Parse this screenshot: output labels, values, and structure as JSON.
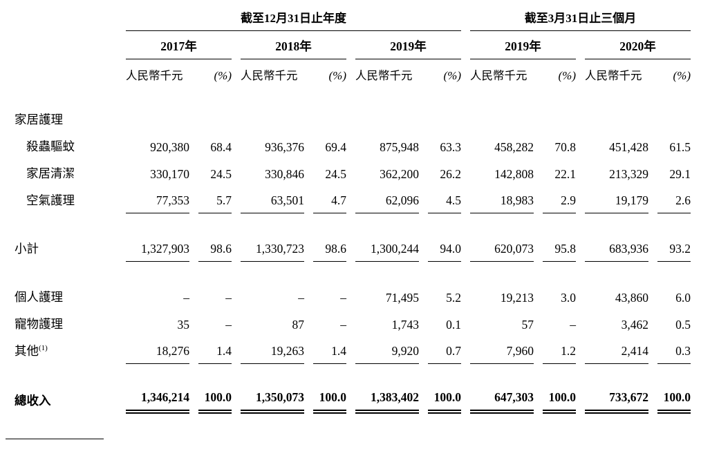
{
  "colors": {
    "text": "#000000",
    "background": "#ffffff",
    "rule": "#000000"
  },
  "table": {
    "col_groups": [
      {
        "title": "截至12月31日止年度",
        "years": [
          "2017年",
          "2018年",
          "2019年"
        ]
      },
      {
        "title": "截至3月31日止三個月",
        "years": [
          "2019年",
          "2020年"
        ]
      }
    ],
    "unit_label": "人民幣千元",
    "pct_label": "(%)",
    "rows": [
      {
        "label": "家居護理",
        "cells": []
      },
      {
        "label": "殺蟲驅蚊",
        "indent": true,
        "cells": [
          "920,380",
          "68.4",
          "936,376",
          "69.4",
          "875,948",
          "63.3",
          "458,282",
          "70.8",
          "451,428",
          "61.5"
        ]
      },
      {
        "label": "家居清潔",
        "indent": true,
        "cells": [
          "330,170",
          "24.5",
          "330,846",
          "24.5",
          "362,200",
          "26.2",
          "142,808",
          "22.1",
          "213,329",
          "29.1"
        ]
      },
      {
        "label": "空氣護理",
        "indent": true,
        "rule": true,
        "cells": [
          "77,353",
          "5.7",
          "63,501",
          "4.7",
          "62,096",
          "4.5",
          "18,983",
          "2.9",
          "19,179",
          "2.6"
        ]
      },
      {
        "label": "小計",
        "gap": true,
        "rule": true,
        "cells": [
          "1,327,903",
          "98.6",
          "1,330,723",
          "98.6",
          "1,300,244",
          "94.0",
          "620,073",
          "95.8",
          "683,936",
          "93.2"
        ]
      },
      {
        "label": "個人護理",
        "gap": true,
        "cells": [
          "–",
          "–",
          "–",
          "–",
          "71,495",
          "5.2",
          "19,213",
          "3.0",
          "43,860",
          "6.0"
        ]
      },
      {
        "label": "寵物護理",
        "cells": [
          "35",
          "–",
          "87",
          "–",
          "1,743",
          "0.1",
          "57",
          "–",
          "3,462",
          "0.5"
        ]
      },
      {
        "label": "其他",
        "sup": "(1)",
        "rule": true,
        "cells": [
          "18,276",
          "1.4",
          "19,263",
          "1.4",
          "9,920",
          "0.7",
          "7,960",
          "1.2",
          "2,414",
          "0.3"
        ]
      },
      {
        "label": "總收入",
        "gap": true,
        "bold": true,
        "double": true,
        "cells": [
          "1,346,214",
          "100.0",
          "1,350,073",
          "100.0",
          "1,383,402",
          "100.0",
          "647,303",
          "100.0",
          "733,672",
          "100.0"
        ]
      }
    ]
  }
}
